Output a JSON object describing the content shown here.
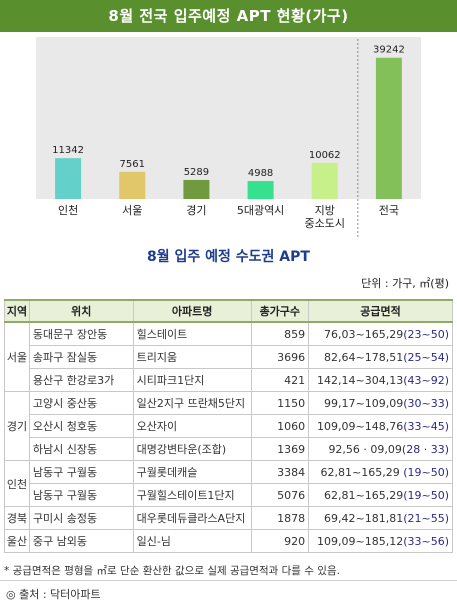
{
  "chart_data": {
    "type": "bar",
    "title": "8월 전국 입주예정 APT 현황(가구)",
    "categories": [
      "인천",
      "서울",
      "경기",
      "5대광역시",
      "지방\n중소도시",
      "전국"
    ],
    "values": [
      11342,
      7561,
      5289,
      4988,
      10062,
      39242
    ],
    "colors": [
      "#63d0c9",
      "#e2c66a",
      "#6f9a3e",
      "#35e08f",
      "#c7f08a",
      "#84c05a"
    ],
    "ylim": [
      0,
      45000
    ],
    "grid": false,
    "legend": "none"
  },
  "section": {
    "title": "8월 입주 예정 수도권 APT",
    "unit": "단위 : 가구, ㎡(평)"
  },
  "table": {
    "headers": [
      "지역",
      "위치",
      "아파트명",
      "총가구수",
      "공급면적"
    ],
    "groups": [
      {
        "region": "서울",
        "rows": [
          {
            "location": "동대문구 장안동",
            "name": "힐스테이트",
            "units": "859",
            "area": "76,03~165,29",
            "pyeong": "(23~50)"
          },
          {
            "location": "송파구 잠실동",
            "name": "트리지움",
            "units": "3696",
            "area": "82,64~178,51",
            "pyeong": "(25~54)"
          },
          {
            "location": "용산구 한강로3가",
            "name": "시티파크1단지",
            "units": "421",
            "area": "142,14~304,13",
            "pyeong": "(43~92)"
          }
        ]
      },
      {
        "region": "경기",
        "rows": [
          {
            "location": "고양시 중산동",
            "name": "일산2지구 뜨란채5단지",
            "units": "1150",
            "area": "99,17~109,09",
            "pyeong": "(30~33)"
          },
          {
            "location": "오산시 청호동",
            "name": "오산자이",
            "units": "1060",
            "area": "109,09~148,76",
            "pyeong": "(33~45)"
          },
          {
            "location": "하남시 신장동",
            "name": "대명강변타운(조합)",
            "units": "1369",
            "area": "92,56 · 09,09",
            "pyeong": "(28 · 33)"
          }
        ]
      },
      {
        "region": "인천",
        "rows": [
          {
            "location": "남동구 구월동",
            "name": "구월롯데캐슬",
            "units": "3384",
            "area": "62,81~165,29",
            "pyeong": " (19~50)"
          },
          {
            "location": "남동구 구월동",
            "name": "구월힐스테이트1단지",
            "units": "5076",
            "area": "62,81~165,29",
            "pyeong": "(19~50)"
          }
        ]
      },
      {
        "region": "경북",
        "rows": [
          {
            "location": "구미시 송정동",
            "name": "대우롯데듀클라스A단지",
            "units": "1878",
            "area": "69,42~181,81",
            "pyeong": "(21~55)"
          }
        ]
      },
      {
        "region": "울산",
        "rows": [
          {
            "location": "중구 남외동",
            "name": "일신-님",
            "units": "920",
            "area": "109,09~185,12",
            "pyeong": "(33~56)"
          }
        ]
      }
    ]
  },
  "footnote": "* 공급면적은 평형을 ㎡로 단순 환산한 값으로 실제 공급면적과 다를 수 있음.",
  "source": "◎ 출처 : 닥터아파트"
}
